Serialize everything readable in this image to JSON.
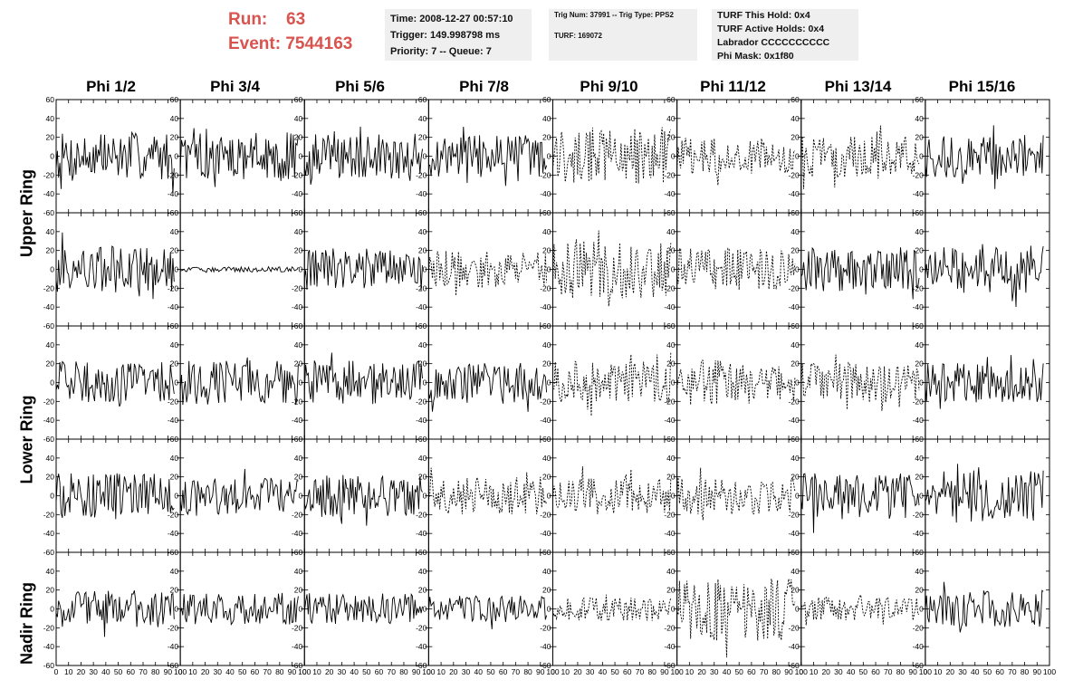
{
  "header": {
    "run_label": "Run:",
    "run_value": "63",
    "event_label": "Event:",
    "event_value": "7544163"
  },
  "info_box_1": {
    "time": "Time: 2008-12-27 00:57:10",
    "trigger": "Trigger: 149.998798 ms",
    "priority": "Priority: 7 -- Queue: 7"
  },
  "info_box_2": {
    "trig": "Trig Num: 37991 -- Trig Type: PPS2",
    "turf": "TURF: 169072"
  },
  "info_box_3": {
    "this_hold": "TURF This Hold: 0x4",
    "active_holds": "TURF Active Holds: 0x4",
    "labrador": "Labrador CCCCCCCCCC",
    "phi_mask": "Phi Mask: 0x1f80"
  },
  "columns": [
    "Phi 1/2",
    "Phi 3/4",
    "Phi 5/6",
    "Phi 7/8",
    "Phi 9/10",
    "Phi 11/12",
    "Phi 13/14",
    "Phi 15/16"
  ],
  "ring_labels": [
    "Upper Ring",
    "Lower Ring",
    "Nadir Ring"
  ],
  "chart_data": {
    "type": "line",
    "title": "",
    "xlabel": "",
    "ylabel": "",
    "xlim": [
      0,
      100
    ],
    "ylim": [
      -60,
      60
    ],
    "x_ticks": [
      "0",
      "10",
      "20",
      "30",
      "40",
      "50",
      "60",
      "70",
      "80",
      "90",
      "100"
    ],
    "y_ticks": [
      "-60",
      "-40",
      "-20",
      "0",
      "20",
      "40",
      "60"
    ],
    "rows": 5,
    "cols": 8,
    "samples_per_trace": 96,
    "x_range_drawn": [
      0,
      95
    ],
    "panel_style_rows": [
      [
        "solid",
        "solid",
        "solid",
        "solid",
        "dashed",
        "dashed",
        "dashed",
        "solid"
      ],
      [
        "solid",
        "solid",
        "solid",
        "dashed",
        "dashed",
        "dashed",
        "solid",
        "solid"
      ],
      [
        "solid",
        "solid",
        "solid",
        "solid",
        "dashed",
        "dashed",
        "dashed",
        "solid"
      ],
      [
        "solid",
        "solid",
        "solid",
        "dashed",
        "dashed",
        "dashed",
        "solid",
        "solid"
      ],
      [
        "solid",
        "solid",
        "solid",
        "solid",
        "dashed",
        "dashed",
        "dashed",
        "solid"
      ]
    ],
    "panel_amplitude_rows": [
      [
        18,
        18,
        17,
        16,
        22,
        14,
        16,
        16
      ],
      [
        18,
        2,
        16,
        14,
        22,
        16,
        17,
        18
      ],
      [
        16,
        17,
        17,
        16,
        16,
        17,
        15,
        15
      ],
      [
        17,
        14,
        16,
        14,
        14,
        14,
        18,
        20
      ],
      [
        14,
        12,
        12,
        10,
        9,
        24,
        9,
        14
      ]
    ]
  }
}
